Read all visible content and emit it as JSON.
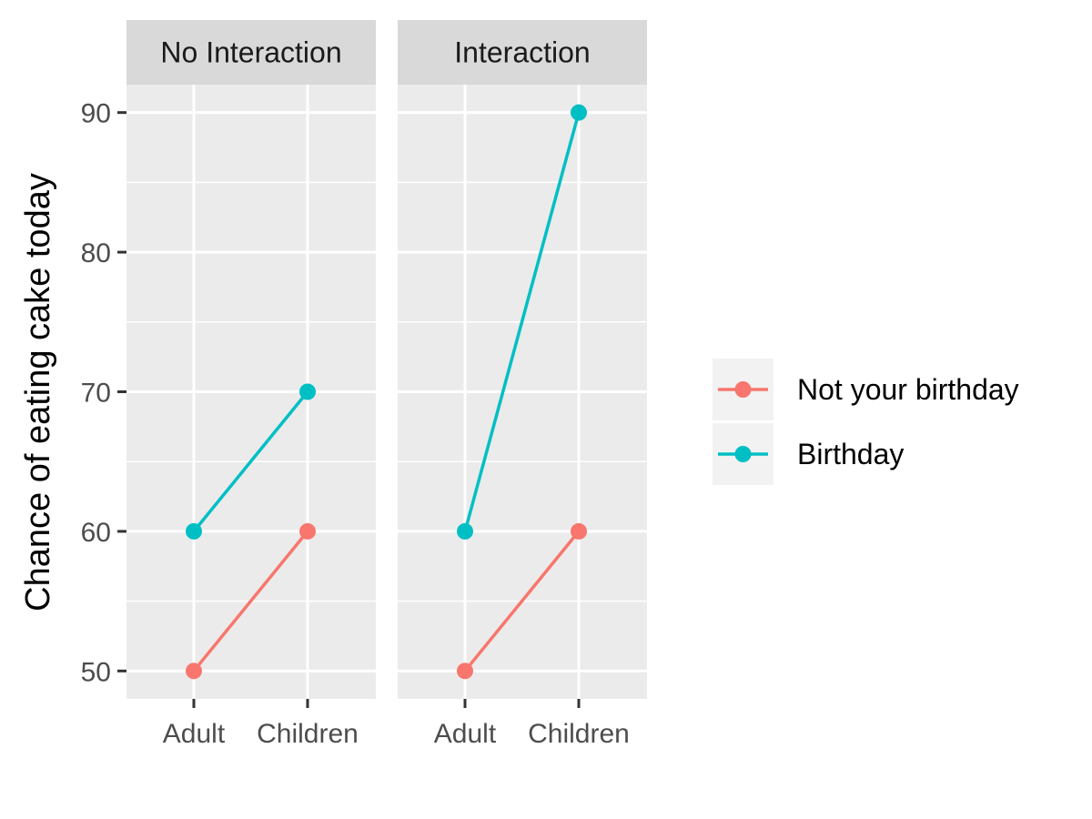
{
  "chart_data": {
    "type": "line",
    "ylabel": "Chance of eating cake today",
    "xlabel": "",
    "ylim": [
      48,
      92
    ],
    "y_ticks": [
      50,
      60,
      70,
      80,
      90
    ],
    "grid": true,
    "legend_position": "right",
    "categories": [
      "Adult",
      "Children"
    ],
    "series_styles": [
      {
        "name": "Not your birthday",
        "color": "#F8766D"
      },
      {
        "name": "Birthday",
        "color": "#00BFC4"
      }
    ],
    "panels": [
      {
        "title": "No Interaction",
        "series": [
          {
            "name": "Not your birthday",
            "values": [
              50,
              60
            ]
          },
          {
            "name": "Birthday",
            "values": [
              60,
              70
            ]
          }
        ]
      },
      {
        "title": "Interaction",
        "series": [
          {
            "name": "Not your birthday",
            "values": [
              50,
              60
            ]
          },
          {
            "name": "Birthday",
            "values": [
              60,
              90
            ]
          }
        ]
      }
    ]
  }
}
